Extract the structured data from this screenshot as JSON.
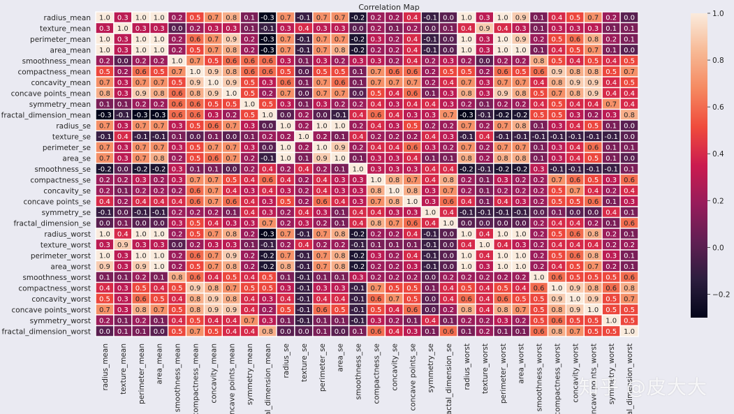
{
  "chart_data": {
    "type": "heatmap",
    "title": "Correlation Map",
    "variables": [
      "radius_mean",
      "texture_mean",
      "perimeter_mean",
      "area_mean",
      "smoothness_mean",
      "compactness_mean",
      "concavity_mean",
      "concave points_mean",
      "symmetry_mean",
      "fractal_dimension_mean",
      "radius_se",
      "texture_se",
      "perimeter_se",
      "area_se",
      "smoothness_se",
      "compactness_se",
      "concavity_se",
      "concave points_se",
      "symmetry_se",
      "fractal_dimension_se",
      "radius_worst",
      "texture_worst",
      "perimeter_worst",
      "area_worst",
      "smoothness_worst",
      "compactness_worst",
      "concavity_worst",
      "concave points_worst",
      "symmetry_worst",
      "fractal_dimension_worst"
    ],
    "values": [
      [
        1.0,
        0.3,
        1.0,
        1.0,
        0.2,
        0.5,
        0.7,
        0.8,
        0.1,
        -0.3,
        0.7,
        -0.1,
        0.7,
        0.7,
        -0.2,
        0.2,
        0.2,
        0.4,
        -0.1,
        -0.0,
        1.0,
        0.3,
        1.0,
        0.9,
        0.1,
        0.4,
        0.5,
        0.7,
        0.2,
        0.0
      ],
      [
        0.3,
        1.0,
        0.3,
        0.3,
        -0.0,
        0.2,
        0.3,
        0.3,
        0.1,
        -0.1,
        0.3,
        0.4,
        0.3,
        0.3,
        0.0,
        0.2,
        0.1,
        0.2,
        0.0,
        0.1,
        0.4,
        0.9,
        0.4,
        0.3,
        0.1,
        0.3,
        0.3,
        0.3,
        0.1,
        0.1
      ],
      [
        1.0,
        0.3,
        1.0,
        1.0,
        0.2,
        0.6,
        0.7,
        0.9,
        0.2,
        -0.3,
        0.7,
        -0.1,
        0.7,
        0.7,
        -0.2,
        0.3,
        0.2,
        0.4,
        -0.1,
        -0.0,
        1.0,
        0.3,
        1.0,
        0.9,
        0.2,
        0.5,
        0.6,
        0.8,
        0.2,
        0.1
      ],
      [
        1.0,
        0.3,
        1.0,
        1.0,
        0.2,
        0.5,
        0.7,
        0.8,
        0.2,
        -0.3,
        0.7,
        -0.1,
        0.7,
        0.8,
        -0.2,
        0.2,
        0.2,
        0.4,
        -0.1,
        -0.0,
        1.0,
        0.3,
        1.0,
        1.0,
        0.1,
        0.4,
        0.5,
        0.7,
        0.1,
        0.0
      ],
      [
        0.2,
        -0.0,
        0.2,
        0.2,
        1.0,
        0.7,
        0.5,
        0.6,
        0.6,
        0.6,
        0.3,
        0.1,
        0.3,
        0.2,
        0.3,
        0.3,
        0.2,
        0.4,
        0.2,
        0.3,
        0.2,
        0.0,
        0.2,
        0.2,
        0.8,
        0.5,
        0.4,
        0.5,
        0.4,
        0.5
      ],
      [
        0.5,
        0.2,
        0.6,
        0.5,
        0.7,
        1.0,
        0.9,
        0.8,
        0.6,
        0.6,
        0.5,
        0.0,
        0.5,
        0.5,
        0.1,
        0.7,
        0.6,
        0.6,
        0.2,
        0.5,
        0.5,
        0.2,
        0.6,
        0.5,
        0.6,
        0.9,
        0.8,
        0.8,
        0.5,
        0.7
      ],
      [
        0.7,
        0.3,
        0.7,
        0.7,
        0.5,
        0.9,
        1.0,
        0.9,
        0.5,
        0.3,
        0.6,
        0.1,
        0.7,
        0.6,
        0.1,
        0.7,
        0.7,
        0.7,
        0.2,
        0.4,
        0.7,
        0.3,
        0.7,
        0.7,
        0.4,
        0.8,
        0.9,
        0.9,
        0.4,
        0.5
      ],
      [
        0.8,
        0.3,
        0.9,
        0.8,
        0.6,
        0.8,
        0.9,
        1.0,
        0.5,
        0.2,
        0.7,
        0.0,
        0.7,
        0.7,
        0.0,
        0.5,
        0.4,
        0.6,
        0.1,
        0.3,
        0.8,
        0.3,
        0.9,
        0.8,
        0.5,
        0.7,
        0.8,
        0.9,
        0.4,
        0.4
      ],
      [
        0.1,
        0.1,
        0.2,
        0.2,
        0.6,
        0.6,
        0.5,
        0.5,
        1.0,
        0.5,
        0.3,
        0.1,
        0.3,
        0.2,
        0.2,
        0.4,
        0.3,
        0.4,
        0.4,
        0.3,
        0.2,
        0.1,
        0.2,
        0.2,
        0.4,
        0.5,
        0.4,
        0.4,
        0.7,
        0.4
      ],
      [
        -0.3,
        -0.1,
        -0.3,
        -0.3,
        0.6,
        0.6,
        0.3,
        0.2,
        0.5,
        1.0,
        0.0,
        0.2,
        0.0,
        -0.1,
        0.4,
        0.6,
        0.4,
        0.3,
        0.3,
        0.7,
        -0.3,
        -0.1,
        -0.2,
        -0.2,
        0.5,
        0.5,
        0.3,
        0.2,
        0.3,
        0.8
      ],
      [
        0.7,
        0.3,
        0.7,
        0.7,
        0.3,
        0.5,
        0.6,
        0.7,
        0.3,
        0.0,
        1.0,
        0.2,
        1.0,
        1.0,
        0.2,
        0.4,
        0.3,
        0.5,
        0.2,
        0.2,
        0.7,
        0.2,
        0.7,
        0.8,
        0.1,
        0.3,
        0.4,
        0.5,
        0.1,
        0.0
      ],
      [
        -0.1,
        0.4,
        -0.1,
        -0.1,
        0.1,
        0.0,
        0.1,
        0.0,
        0.1,
        0.2,
        0.2,
        1.0,
        0.2,
        0.1,
        0.4,
        0.2,
        0.2,
        0.2,
        0.4,
        0.3,
        -0.1,
        0.4,
        -0.1,
        -0.1,
        -0.1,
        -0.1,
        -0.1,
        -0.1,
        -0.1,
        -0.0
      ],
      [
        0.7,
        0.3,
        0.7,
        0.7,
        0.3,
        0.5,
        0.7,
        0.7,
        0.3,
        0.0,
        1.0,
        0.2,
        1.0,
        0.9,
        0.2,
        0.4,
        0.4,
        0.6,
        0.3,
        0.2,
        0.7,
        0.2,
        0.7,
        0.7,
        0.1,
        0.3,
        0.4,
        0.6,
        0.1,
        0.1
      ],
      [
        0.7,
        0.3,
        0.7,
        0.8,
        0.2,
        0.5,
        0.6,
        0.7,
        0.2,
        -0.1,
        1.0,
        0.1,
        0.9,
        1.0,
        0.1,
        0.3,
        0.3,
        0.4,
        0.1,
        0.1,
        0.8,
        0.2,
        0.8,
        0.8,
        0.1,
        0.3,
        0.4,
        0.5,
        0.1,
        0.0
      ],
      [
        -0.2,
        0.0,
        -0.2,
        -0.2,
        0.3,
        0.1,
        0.1,
        0.0,
        0.2,
        0.4,
        0.2,
        0.4,
        0.2,
        0.1,
        1.0,
        0.3,
        0.3,
        0.3,
        0.4,
        0.4,
        -0.2,
        -0.1,
        -0.2,
        -0.2,
        0.3,
        -0.1,
        -0.1,
        -0.1,
        -0.1,
        0.1
      ],
      [
        0.2,
        0.2,
        0.3,
        0.2,
        0.3,
        0.7,
        0.7,
        0.5,
        0.4,
        0.6,
        0.4,
        0.2,
        0.4,
        0.3,
        0.3,
        1.0,
        0.8,
        0.7,
        0.4,
        0.8,
        0.2,
        0.1,
        0.3,
        0.2,
        0.2,
        0.7,
        0.6,
        0.5,
        0.3,
        0.6
      ],
      [
        0.2,
        0.1,
        0.2,
        0.2,
        0.2,
        0.6,
        0.7,
        0.4,
        0.3,
        0.4,
        0.3,
        0.2,
        0.4,
        0.3,
        0.3,
        0.8,
        1.0,
        0.8,
        0.3,
        0.7,
        0.2,
        0.1,
        0.2,
        0.2,
        0.2,
        0.5,
        0.7,
        0.4,
        0.2,
        0.4
      ],
      [
        0.4,
        0.2,
        0.4,
        0.4,
        0.4,
        0.6,
        0.7,
        0.6,
        0.4,
        0.3,
        0.5,
        0.2,
        0.6,
        0.4,
        0.3,
        0.7,
        0.8,
        1.0,
        0.3,
        0.6,
        0.4,
        0.1,
        0.4,
        0.3,
        0.2,
        0.5,
        0.5,
        0.6,
        0.1,
        0.3
      ],
      [
        -0.1,
        0.0,
        -0.1,
        -0.1,
        0.2,
        0.2,
        0.2,
        0.1,
        0.4,
        0.3,
        0.2,
        0.4,
        0.3,
        0.1,
        0.4,
        0.4,
        0.3,
        0.3,
        1.0,
        0.4,
        -0.1,
        -0.1,
        -0.1,
        -0.1,
        -0.0,
        0.1,
        0.0,
        -0.0,
        0.4,
        0.1
      ],
      [
        -0.0,
        0.1,
        -0.0,
        -0.0,
        0.3,
        0.5,
        0.4,
        0.3,
        0.3,
        0.7,
        0.2,
        0.3,
        0.2,
        0.1,
        0.4,
        0.8,
        0.7,
        0.6,
        0.4,
        1.0,
        -0.0,
        -0.0,
        -0.0,
        -0.0,
        0.2,
        0.4,
        0.4,
        0.2,
        0.1,
        0.6
      ],
      [
        1.0,
        0.4,
        1.0,
        1.0,
        0.2,
        0.5,
        0.7,
        0.8,
        0.2,
        -0.3,
        0.7,
        -0.1,
        0.7,
        0.8,
        -0.2,
        0.2,
        0.2,
        0.4,
        -0.1,
        -0.0,
        1.0,
        0.4,
        1.0,
        1.0,
        0.2,
        0.5,
        0.6,
        0.8,
        0.2,
        0.1
      ],
      [
        0.3,
        0.9,
        0.3,
        0.3,
        0.0,
        0.2,
        0.3,
        0.3,
        0.1,
        -0.1,
        0.2,
        0.4,
        0.2,
        0.2,
        -0.1,
        0.1,
        0.1,
        0.1,
        -0.1,
        -0.0,
        0.4,
        1.0,
        0.4,
        0.3,
        0.2,
        0.4,
        0.4,
        0.4,
        0.2,
        0.2
      ],
      [
        1.0,
        0.3,
        1.0,
        1.0,
        0.2,
        0.6,
        0.7,
        0.9,
        0.2,
        -0.2,
        0.7,
        -0.1,
        0.7,
        0.8,
        -0.2,
        0.3,
        0.2,
        0.4,
        -0.1,
        -0.0,
        1.0,
        0.4,
        1.0,
        1.0,
        0.2,
        0.5,
        0.6,
        0.8,
        0.3,
        0.1
      ],
      [
        0.9,
        0.3,
        0.9,
        1.0,
        0.2,
        0.5,
        0.7,
        0.8,
        0.2,
        -0.2,
        0.8,
        -0.1,
        0.7,
        0.8,
        -0.2,
        0.2,
        0.2,
        0.3,
        -0.1,
        -0.0,
        1.0,
        0.3,
        1.0,
        1.0,
        0.2,
        0.4,
        0.5,
        0.7,
        0.2,
        0.1
      ],
      [
        0.1,
        0.1,
        0.2,
        0.1,
        0.8,
        0.6,
        0.4,
        0.5,
        0.4,
        0.5,
        0.1,
        -0.1,
        0.1,
        0.1,
        0.3,
        0.2,
        0.2,
        0.2,
        -0.0,
        0.2,
        0.2,
        0.2,
        0.2,
        0.2,
        1.0,
        0.6,
        0.5,
        0.5,
        0.5,
        0.6
      ],
      [
        0.4,
        0.3,
        0.5,
        0.4,
        0.5,
        0.9,
        0.8,
        0.7,
        0.5,
        0.5,
        0.3,
        -0.1,
        0.3,
        0.3,
        -0.1,
        0.7,
        0.5,
        0.5,
        0.1,
        0.4,
        0.5,
        0.4,
        0.5,
        0.4,
        0.6,
        1.0,
        0.9,
        0.8,
        0.6,
        0.8
      ],
      [
        0.5,
        0.3,
        0.6,
        0.5,
        0.4,
        0.8,
        0.9,
        0.8,
        0.4,
        0.3,
        0.4,
        -0.1,
        0.4,
        0.4,
        -0.1,
        0.6,
        0.7,
        0.5,
        0.0,
        0.4,
        0.6,
        0.4,
        0.6,
        0.5,
        0.5,
        0.9,
        1.0,
        0.9,
        0.5,
        0.7
      ],
      [
        0.7,
        0.3,
        0.8,
        0.7,
        0.5,
        0.8,
        0.9,
        0.9,
        0.4,
        0.2,
        0.5,
        -0.1,
        0.6,
        0.5,
        -0.1,
        0.5,
        0.4,
        0.6,
        -0.0,
        0.2,
        0.8,
        0.4,
        0.8,
        0.7,
        0.5,
        0.8,
        0.9,
        1.0,
        0.5,
        0.5
      ],
      [
        0.2,
        0.1,
        0.2,
        0.1,
        0.4,
        0.5,
        0.4,
        0.4,
        0.7,
        0.3,
        0.1,
        -0.1,
        0.1,
        0.1,
        -0.1,
        0.3,
        0.2,
        0.1,
        0.4,
        0.1,
        0.2,
        0.2,
        0.3,
        0.2,
        0.5,
        0.6,
        0.5,
        0.5,
        1.0,
        0.5
      ],
      [
        0.0,
        0.1,
        0.1,
        0.0,
        0.5,
        0.7,
        0.5,
        0.4,
        0.4,
        0.8,
        0.0,
        -0.0,
        0.1,
        0.0,
        0.1,
        0.6,
        0.4,
        0.3,
        0.1,
        0.6,
        0.1,
        0.2,
        0.1,
        0.1,
        0.6,
        0.8,
        0.7,
        0.5,
        0.5,
        1.0
      ]
    ],
    "vmin": -0.3,
    "vmax": 1.0,
    "colorbar_ticks": [
      "1.0",
      "0.8",
      "0.6",
      "0.4",
      "0.2",
      "0.0",
      "−0.2"
    ],
    "colorbar_tick_values": [
      1.0,
      0.8,
      0.6,
      0.4,
      0.2,
      0.0,
      -0.2
    ],
    "colormap": "rocket",
    "colormap_stops": [
      "#03051a",
      "#2c1e3e",
      "#611f53",
      "#971c5b",
      "#cb1b4f",
      "#ef4b3c",
      "#f58860",
      "#f7b995",
      "#faebdd"
    ]
  },
  "watermark": "知乎 @皮大大"
}
